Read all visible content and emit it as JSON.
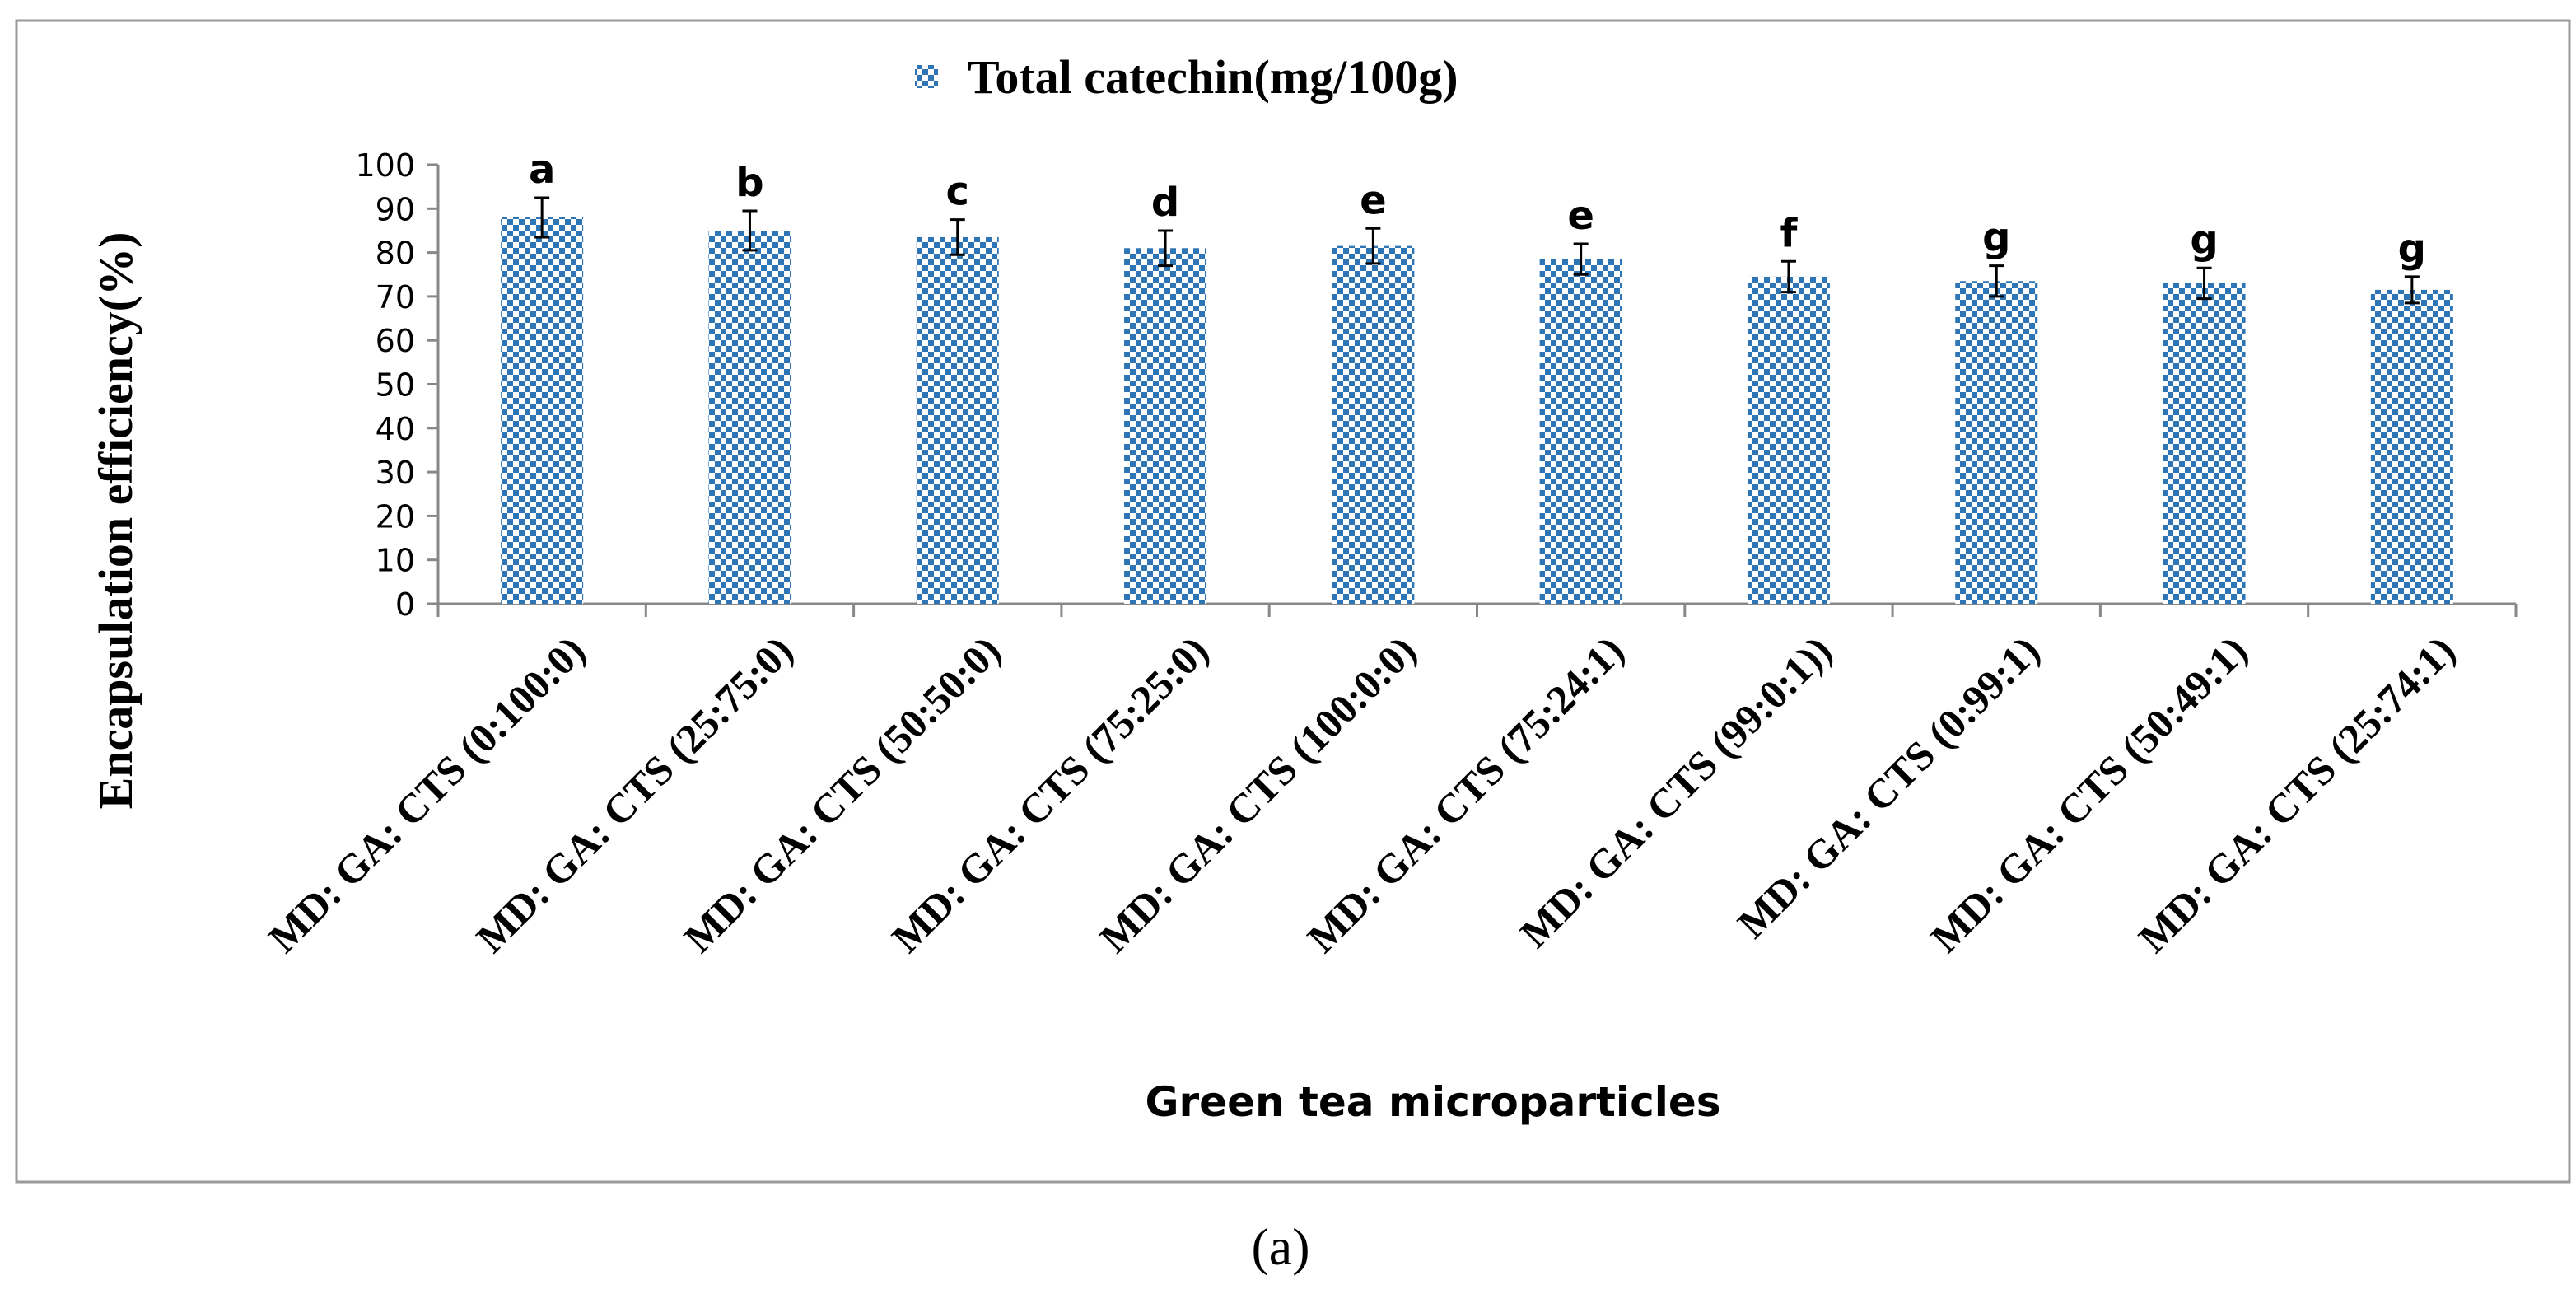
{
  "chart_data": {
    "type": "bar",
    "title": "",
    "legend": {
      "label": "Total catechin(mg/100g)",
      "placement": "top-center"
    },
    "xlabel": "Green tea microparticles",
    "ylabel": "Encapsulation efficiency(%)",
    "ylim": [
      0,
      100
    ],
    "yticks": [
      0,
      10,
      20,
      30,
      40,
      50,
      60,
      70,
      80,
      90,
      100
    ],
    "categories": [
      "MD: GA: CTS (0:100:0)",
      "MD: GA: CTS (25:75:0)",
      "MD: GA: CTS (50:50:0)",
      "MD: GA: CTS (75:25:0)",
      "MD: GA: CTS (100:0:0)",
      "MD: GA: CTS (75:24:1)",
      "MD: GA: CTS (99:0:1))",
      "MD: GA: CTS (0:99:1)",
      "MD: GA: CTS (50:49:1)",
      "MD: GA: CTS (25:74:1)"
    ],
    "series": [
      {
        "name": "Total catechin(mg/100g)",
        "color": "#2E75B6",
        "values": [
          88,
          85,
          83.5,
          81,
          81.5,
          78.5,
          74.5,
          73.5,
          73,
          71.5
        ],
        "errors": [
          4.5,
          4.5,
          4,
          4,
          4,
          3.5,
          3.5,
          3.5,
          3.5,
          3
        ],
        "significance_letters": [
          "a",
          "b",
          "c",
          "d",
          "e",
          "e",
          "f",
          "g",
          "g",
          "g"
        ]
      }
    ]
  },
  "caption": "(a)"
}
